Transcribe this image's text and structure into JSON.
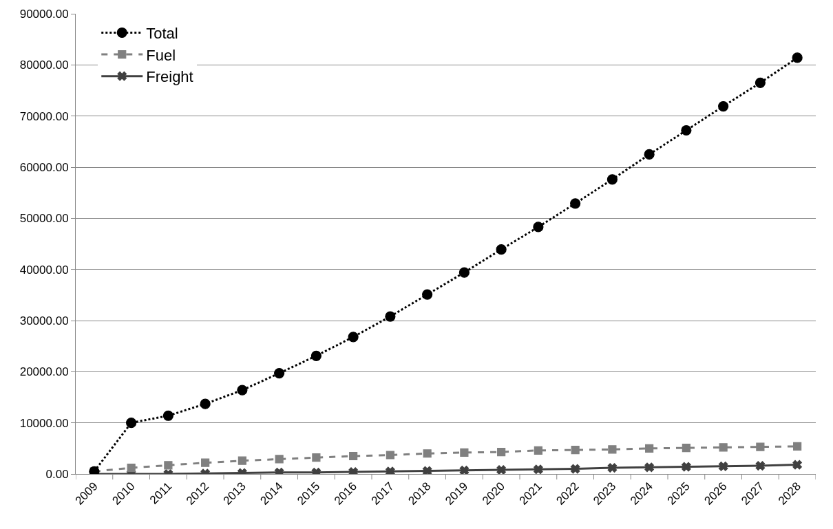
{
  "chart_data": {
    "type": "line",
    "categories": [
      "2009",
      "2010",
      "2011",
      "2012",
      "2013",
      "2014",
      "2015",
      "2016",
      "2017",
      "2018",
      "2019",
      "2020",
      "2021",
      "2022",
      "2023",
      "2024",
      "2025",
      "2026",
      "2027",
      "2028"
    ],
    "series": [
      {
        "name": "Total",
        "color": "#000000",
        "marker": "circle",
        "line_style": "dotted",
        "values": [
          500,
          10000,
          11400,
          13700,
          16400,
          19700,
          23100,
          26800,
          30800,
          35100,
          39400,
          43900,
          48300,
          52900,
          57600,
          62500,
          67200,
          71900,
          76500,
          81400
        ]
      },
      {
        "name": "Fuel",
        "color": "#808080",
        "marker": "square",
        "line_style": "dashed",
        "values": [
          500,
          1200,
          1700,
          2200,
          2600,
          2900,
          3200,
          3500,
          3700,
          4000,
          4200,
          4300,
          4600,
          4700,
          4800,
          5000,
          5100,
          5200,
          5300,
          5400
        ]
      },
      {
        "name": "Freight",
        "color": "#404040",
        "marker": "cross",
        "line_style": "solid",
        "values": [
          0,
          0,
          0,
          100,
          200,
          300,
          300,
          400,
          500,
          600,
          700,
          800,
          900,
          1000,
          1200,
          1300,
          1400,
          1500,
          1600,
          1800
        ]
      }
    ],
    "ylim": [
      0,
      90000
    ],
    "yticks": [
      {
        "value": 0,
        "label": "0.00"
      },
      {
        "value": 10000,
        "label": "10000.00"
      },
      {
        "value": 20000,
        "label": "20000.00"
      },
      {
        "value": 30000,
        "label": "30000.00"
      },
      {
        "value": 40000,
        "label": "40000.00"
      },
      {
        "value": 50000,
        "label": "50000.00"
      },
      {
        "value": 60000,
        "label": "60000.00"
      },
      {
        "value": 70000,
        "label": "70000.00"
      },
      {
        "value": 80000,
        "label": "80000.00"
      },
      {
        "value": 90000,
        "label": "90000.00"
      }
    ],
    "grid": "y",
    "legend": "top left"
  }
}
